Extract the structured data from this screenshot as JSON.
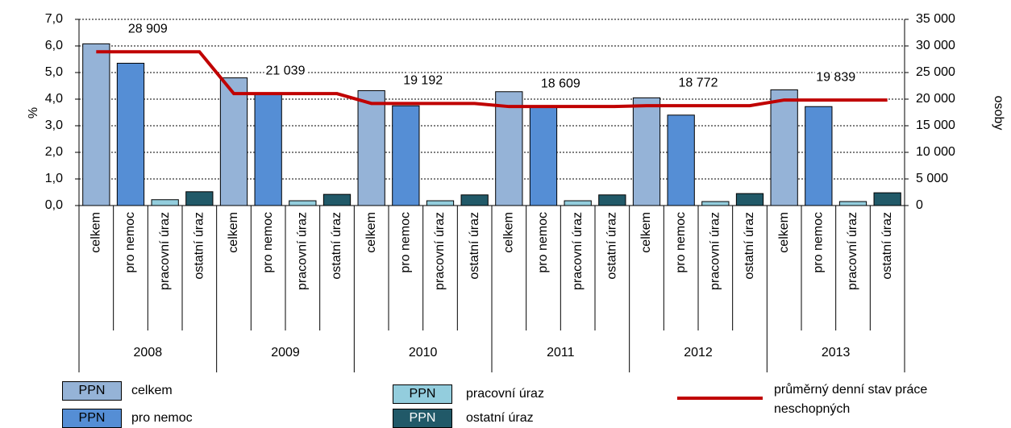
{
  "chart_data": {
    "type": "bar",
    "ylabel": "%",
    "y2label": "osoby",
    "groups": [
      "2008",
      "2009",
      "2010",
      "2011",
      "2012",
      "2013"
    ],
    "categories": [
      "celkem",
      "pro nemoc",
      "pracovní úraz",
      "ostatní úraz",
      "celkem",
      "pro nemoc",
      "pracovní úraz",
      "ostatní úraz",
      "celkem",
      "pro nemoc",
      "pracovní úraz",
      "ostatní úraz",
      "celkem",
      "pro nemoc",
      "pracovní úraz",
      "ostatní úraz",
      "celkem",
      "pro nemoc",
      "pracovní úraz",
      "ostatní úraz",
      "celkem",
      "pro nemoc",
      "pracovní úraz",
      "ostatní úraz"
    ],
    "values": [
      6.08,
      5.35,
      0.22,
      0.52,
      4.8,
      4.2,
      0.18,
      0.42,
      4.32,
      3.75,
      0.18,
      0.4,
      4.28,
      3.75,
      0.18,
      0.4,
      4.05,
      3.4,
      0.15,
      0.45,
      4.35,
      3.72,
      0.15,
      0.48
    ],
    "legend": [
      {
        "tag": "PPN",
        "label": "celkem",
        "color": "#95b3d7"
      },
      {
        "tag": "PPN",
        "label": "pro nemoc",
        "color": "#558ed5"
      },
      {
        "tag": "PPN",
        "label": "pracovní úraz",
        "color": "#93cddd"
      },
      {
        "tag": "PPN",
        "label": "ostatní úraz",
        "color": "#215968"
      }
    ],
    "line": {
      "name": "průměrný denní stav práce neschopných",
      "color": "#c00000",
      "axis": "y2",
      "values": [
        28909,
        28909,
        28909,
        28909,
        21039,
        21039,
        21039,
        21039,
        19192,
        19192,
        19192,
        19192,
        18609,
        18609,
        18609,
        18609,
        18772,
        18772,
        18772,
        18772,
        19839,
        19839,
        19839,
        19839
      ],
      "value_labels": [
        null,
        "28 909",
        null,
        null,
        null,
        "21 039",
        null,
        null,
        null,
        "19 192",
        null,
        null,
        null,
        "18 609",
        null,
        null,
        null,
        "18 772",
        null,
        null,
        null,
        "19 839",
        null,
        null
      ]
    },
    "ylim": [
      0,
      7
    ],
    "yticks": [
      {
        "value": 0,
        "label": "0,0"
      },
      {
        "value": 1,
        "label": "1,0"
      },
      {
        "value": 2,
        "label": "2,0"
      },
      {
        "value": 3,
        "label": "3,0"
      },
      {
        "value": 4,
        "label": "4,0"
      },
      {
        "value": 5,
        "label": "5,0"
      },
      {
        "value": 6,
        "label": "6,0"
      },
      {
        "value": 7,
        "label": "7,0"
      }
    ],
    "y2lim": [
      0,
      35000
    ],
    "y2ticks": [
      0,
      {
        "value": 5000,
        "label": "5 000"
      },
      {
        "value": 10000,
        "label": "10 000"
      },
      {
        "value": 15000,
        "label": "15 000"
      },
      {
        "value": 20000,
        "label": "20 000"
      },
      {
        "value": 25000,
        "label": "25 000"
      },
      {
        "value": 30000,
        "label": "30 000"
      },
      {
        "value": 35000,
        "label": "35 000"
      }
    ],
    "grid": true
  }
}
